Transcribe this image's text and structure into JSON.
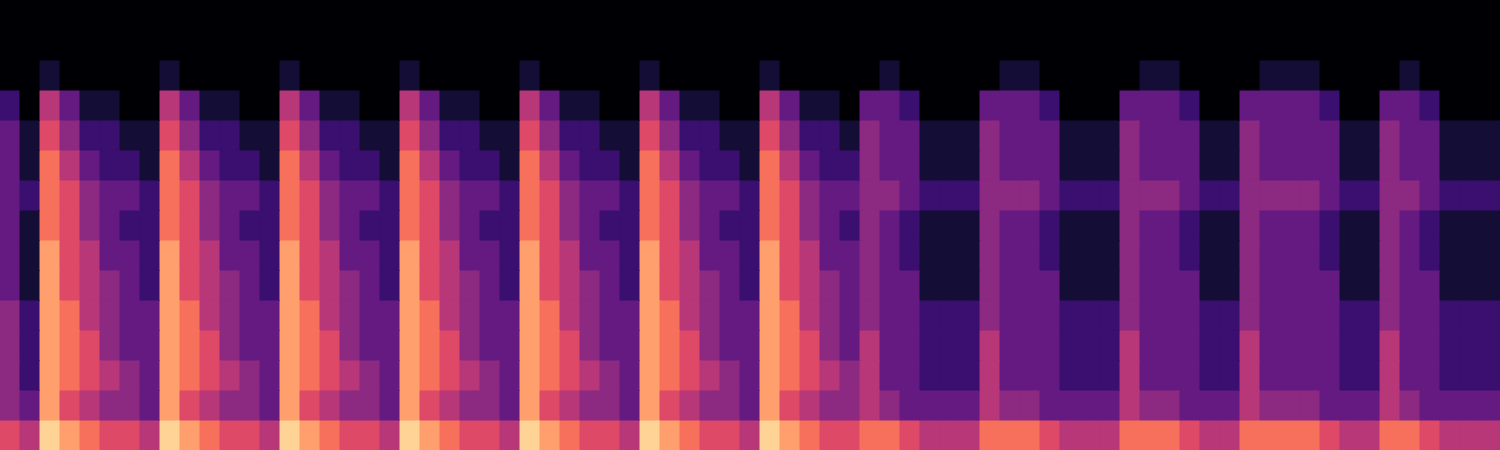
{
  "chart_data": {
    "type": "heatmap",
    "tick_labels": false,
    "xlim": [
      0,
      75
    ],
    "ylim": [
      0,
      15
    ],
    "zlim": [
      0,
      9
    ],
    "cells": [
      [
        6,
        5,
        9,
        8,
        7,
        6,
        6,
        5,
        9,
        8,
        7,
        6,
        6,
        5,
        9,
        8,
        7,
        6,
        6,
        5,
        9,
        8,
        7,
        6,
        6,
        5,
        9,
        8,
        7,
        6,
        6,
        5,
        9,
        8,
        7,
        6,
        6,
        5,
        9,
        8,
        7,
        6,
        6,
        7,
        7,
        6,
        5,
        5,
        5,
        7,
        7,
        7,
        6,
        5,
        5,
        5,
        7,
        7,
        7,
        6,
        5,
        5,
        7,
        7,
        7,
        7,
        6,
        5,
        5,
        7,
        7,
        6,
        5,
        5,
        5
      ],
      [
        4,
        3,
        8,
        6,
        5,
        4,
        4,
        3,
        8,
        6,
        5,
        4,
        4,
        3,
        8,
        6,
        5,
        4,
        4,
        3,
        8,
        6,
        5,
        4,
        4,
        3,
        8,
        6,
        5,
        4,
        4,
        3,
        8,
        6,
        5,
        4,
        4,
        3,
        8,
        6,
        5,
        4,
        4,
        5,
        4,
        3,
        3,
        3,
        3,
        5,
        4,
        4,
        3,
        3,
        3,
        3,
        5,
        4,
        4,
        3,
        3,
        3,
        5,
        4,
        4,
        4,
        3,
        3,
        3,
        5,
        4,
        3,
        3,
        3,
        3
      ],
      [
        4,
        2,
        8,
        7,
        6,
        5,
        4,
        3,
        8,
        7,
        6,
        5,
        4,
        3,
        8,
        7,
        6,
        5,
        4,
        3,
        8,
        7,
        6,
        5,
        4,
        3,
        8,
        7,
        6,
        5,
        4,
        3,
        8,
        7,
        6,
        5,
        4,
        3,
        8,
        7,
        6,
        5,
        4,
        5,
        3,
        3,
        2,
        2,
        2,
        5,
        3,
        3,
        3,
        2,
        2,
        2,
        5,
        3,
        3,
        3,
        2,
        2,
        5,
        3,
        3,
        3,
        3,
        2,
        2,
        5,
        3,
        3,
        2,
        2,
        2
      ],
      [
        4,
        2,
        8,
        7,
        6,
        4,
        3,
        3,
        8,
        7,
        6,
        4,
        3,
        3,
        8,
        7,
        6,
        4,
        3,
        3,
        8,
        7,
        6,
        4,
        3,
        3,
        8,
        7,
        6,
        4,
        3,
        3,
        8,
        7,
        6,
        4,
        3,
        3,
        8,
        7,
        6,
        4,
        3,
        5,
        3,
        3,
        2,
        2,
        2,
        5,
        3,
        3,
        3,
        2,
        2,
        2,
        5,
        3,
        3,
        3,
        2,
        2,
        5,
        3,
        3,
        3,
        3,
        2,
        2,
        5,
        3,
        3,
        2,
        2,
        2
      ],
      [
        4,
        2,
        8,
        7,
        5,
        4,
        3,
        3,
        8,
        7,
        5,
        4,
        3,
        3,
        8,
        7,
        5,
        4,
        3,
        3,
        8,
        7,
        5,
        4,
        3,
        3,
        8,
        7,
        5,
        4,
        3,
        3,
        8,
        7,
        5,
        4,
        3,
        3,
        8,
        7,
        5,
        4,
        3,
        4,
        3,
        3,
        2,
        2,
        2,
        4,
        3,
        3,
        3,
        2,
        2,
        2,
        4,
        3,
        3,
        3,
        2,
        2,
        4,
        3,
        3,
        3,
        3,
        2,
        2,
        4,
        3,
        3,
        2,
        2,
        2
      ],
      [
        3,
        1,
        8,
        6,
        5,
        4,
        3,
        2,
        8,
        6,
        5,
        4,
        3,
        2,
        8,
        6,
        5,
        4,
        3,
        2,
        8,
        6,
        5,
        4,
        3,
        2,
        8,
        6,
        5,
        4,
        3,
        2,
        8,
        6,
        5,
        4,
        3,
        2,
        8,
        6,
        5,
        4,
        3,
        4,
        3,
        3,
        1,
        1,
        1,
        4,
        3,
        3,
        3,
        1,
        1,
        1,
        4,
        3,
        3,
        3,
        1,
        1,
        4,
        3,
        3,
        3,
        3,
        1,
        1,
        4,
        3,
        3,
        1,
        1,
        1
      ],
      [
        3,
        1,
        8,
        6,
        5,
        3,
        3,
        2,
        8,
        6,
        5,
        3,
        3,
        2,
        8,
        6,
        5,
        3,
        3,
        2,
        8,
        6,
        5,
        3,
        3,
        2,
        8,
        6,
        5,
        3,
        3,
        2,
        8,
        6,
        5,
        3,
        3,
        2,
        8,
        6,
        5,
        3,
        3,
        4,
        3,
        2,
        1,
        1,
        1,
        4,
        3,
        3,
        2,
        1,
        1,
        1,
        4,
        3,
        3,
        2,
        1,
        1,
        4,
        3,
        3,
        3,
        2,
        1,
        1,
        4,
        3,
        2,
        1,
        1,
        1
      ],
      [
        3,
        1,
        7,
        6,
        4,
        3,
        2,
        2,
        7,
        6,
        4,
        3,
        2,
        2,
        7,
        6,
        4,
        3,
        2,
        2,
        7,
        6,
        4,
        3,
        2,
        2,
        7,
        6,
        4,
        3,
        2,
        2,
        7,
        6,
        4,
        3,
        2,
        2,
        7,
        6,
        4,
        3,
        2,
        4,
        3,
        2,
        1,
        1,
        1,
        4,
        3,
        3,
        2,
        1,
        1,
        1,
        4,
        3,
        3,
        2,
        1,
        1,
        4,
        3,
        3,
        3,
        2,
        1,
        1,
        4,
        3,
        2,
        1,
        1,
        1
      ],
      [
        3,
        2,
        7,
        6,
        4,
        3,
        3,
        2,
        7,
        6,
        4,
        3,
        3,
        2,
        7,
        6,
        4,
        3,
        3,
        2,
        7,
        6,
        4,
        3,
        3,
        2,
        7,
        6,
        4,
        3,
        3,
        2,
        7,
        6,
        4,
        3,
        3,
        2,
        7,
        6,
        4,
        3,
        3,
        4,
        4,
        3,
        2,
        2,
        2,
        4,
        4,
        4,
        3,
        2,
        2,
        2,
        4,
        4,
        4,
        3,
        2,
        2,
        4,
        4,
        4,
        4,
        3,
        2,
        2,
        4,
        4,
        3,
        2,
        2,
        2
      ],
      [
        3,
        1,
        7,
        5,
        3,
        2,
        2,
        1,
        7,
        5,
        3,
        2,
        2,
        1,
        7,
        5,
        3,
        2,
        2,
        1,
        7,
        5,
        3,
        2,
        2,
        1,
        7,
        5,
        3,
        2,
        2,
        1,
        7,
        5,
        3,
        2,
        2,
        1,
        7,
        5,
        3,
        2,
        2,
        4,
        3,
        3,
        1,
        1,
        1,
        4,
        3,
        3,
        3,
        1,
        1,
        1,
        4,
        3,
        3,
        3,
        1,
        1,
        4,
        3,
        3,
        3,
        3,
        1,
        1,
        4,
        3,
        3,
        1,
        1,
        1
      ],
      [
        3,
        1,
        6,
        4,
        2,
        2,
        1,
        1,
        6,
        4,
        2,
        2,
        1,
        1,
        6,
        4,
        2,
        2,
        1,
        1,
        6,
        4,
        2,
        2,
        1,
        1,
        6,
        4,
        2,
        2,
        1,
        1,
        6,
        4,
        2,
        2,
        1,
        1,
        6,
        4,
        2,
        2,
        1,
        4,
        3,
        3,
        1,
        1,
        1,
        4,
        3,
        3,
        3,
        1,
        1,
        1,
        4,
        3,
        3,
        3,
        1,
        1,
        4,
        3,
        3,
        3,
        3,
        1,
        1,
        4,
        3,
        3,
        1,
        1,
        1
      ],
      [
        2,
        0,
        5,
        3,
        1,
        1,
        0,
        0,
        5,
        3,
        1,
        1,
        0,
        0,
        5,
        3,
        1,
        1,
        0,
        0,
        5,
        3,
        1,
        1,
        0,
        0,
        5,
        3,
        1,
        1,
        0,
        0,
        5,
        3,
        1,
        1,
        0,
        0,
        5,
        3,
        1,
        1,
        0,
        3,
        3,
        2,
        0,
        0,
        0,
        3,
        3,
        3,
        2,
        0,
        0,
        0,
        3,
        3,
        3,
        2,
        0,
        0,
        3,
        3,
        3,
        3,
        2,
        0,
        0,
        3,
        3,
        2,
        0,
        0,
        0
      ],
      [
        0,
        0,
        1,
        0,
        0,
        0,
        0,
        0,
        1,
        0,
        0,
        0,
        0,
        0,
        1,
        0,
        0,
        0,
        0,
        0,
        1,
        0,
        0,
        0,
        0,
        0,
        1,
        0,
        0,
        0,
        0,
        0,
        1,
        0,
        0,
        0,
        0,
        0,
        1,
        0,
        0,
        0,
        0,
        0,
        1,
        0,
        0,
        0,
        0,
        0,
        1,
        1,
        0,
        0,
        0,
        0,
        0,
        1,
        1,
        0,
        0,
        0,
        0,
        1,
        1,
        1,
        0,
        0,
        0,
        0,
        1,
        0,
        0,
        0,
        0
      ],
      [
        0,
        0,
        0,
        0,
        0,
        0,
        0,
        0,
        0,
        0,
        0,
        0,
        0,
        0,
        0,
        0,
        0,
        0,
        0,
        0,
        0,
        0,
        0,
        0,
        0,
        0,
        0,
        0,
        0,
        0,
        0,
        0,
        0,
        0,
        0,
        0,
        0,
        0,
        0,
        0,
        0,
        0,
        0,
        0,
        0,
        0,
        0,
        0,
        0,
        0,
        0,
        0,
        0,
        0,
        0,
        0,
        0,
        0,
        0,
        0,
        0,
        0,
        0,
        0,
        0,
        0,
        0,
        0,
        0,
        0,
        0,
        0,
        0,
        0,
        0
      ],
      [
        0,
        0,
        0,
        0,
        0,
        0,
        0,
        0,
        0,
        0,
        0,
        0,
        0,
        0,
        0,
        0,
        0,
        0,
        0,
        0,
        0,
        0,
        0,
        0,
        0,
        0,
        0,
        0,
        0,
        0,
        0,
        0,
        0,
        0,
        0,
        0,
        0,
        0,
        0,
        0,
        0,
        0,
        0,
        0,
        0,
        0,
        0,
        0,
        0,
        0,
        0,
        0,
        0,
        0,
        0,
        0,
        0,
        0,
        0,
        0,
        0,
        0,
        0,
        0,
        0,
        0,
        0,
        0,
        0,
        0,
        0,
        0,
        0,
        0,
        0
      ]
    ]
  }
}
